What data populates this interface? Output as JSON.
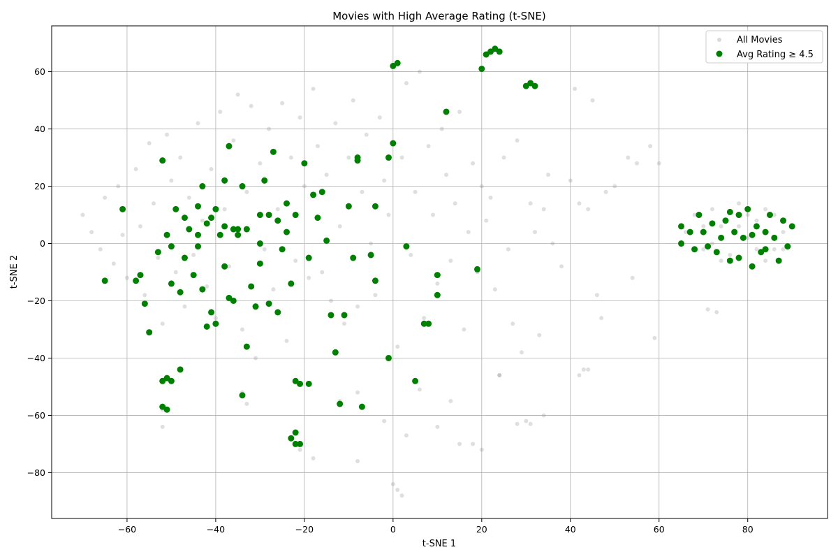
{
  "chart_data": {
    "type": "scatter",
    "title": "Movies with High Average Rating (t-SNE)",
    "xlabel": "t-SNE 1",
    "ylabel": "t-SNE 2",
    "xlim": [
      -77,
      98
    ],
    "ylim": [
      -96,
      76
    ],
    "x_ticks": [
      -60,
      -40,
      -20,
      0,
      20,
      40,
      60,
      80
    ],
    "y_ticks": [
      -80,
      -60,
      -40,
      -20,
      0,
      20,
      40,
      60
    ],
    "x_tick_labels": [
      "−60",
      "−40",
      "−20",
      "0",
      "20",
      "40",
      "60",
      "80"
    ],
    "y_tick_labels": [
      "−80",
      "−60",
      "−40",
      "−20",
      "0",
      "20",
      "40",
      "60"
    ],
    "grid": true,
    "legend_position": "top-right",
    "series": [
      {
        "name": "All Movies",
        "color": "#808080",
        "opacity": 0.25,
        "marker": "circle-small",
        "points": [
          [
            -70,
            10
          ],
          [
            -68,
            4
          ],
          [
            -66,
            -2
          ],
          [
            -65,
            16
          ],
          [
            -63,
            -7
          ],
          [
            -62,
            20
          ],
          [
            -61,
            3
          ],
          [
            -60,
            -12
          ],
          [
            -58,
            26
          ],
          [
            -57,
            6
          ],
          [
            -56,
            -18
          ],
          [
            -55,
            35
          ],
          [
            -54,
            14
          ],
          [
            -53,
            -5
          ],
          [
            -52,
            -28
          ],
          [
            -51,
            38
          ],
          [
            -50,
            22
          ],
          [
            -49,
            -10
          ],
          [
            -48,
            30
          ],
          [
            -47,
            -22
          ],
          [
            -46,
            16
          ],
          [
            -45,
            -4
          ],
          [
            -44,
            42
          ],
          [
            -43,
            8
          ],
          [
            -42,
            -15
          ],
          [
            -41,
            26
          ],
          [
            -40,
            -26
          ],
          [
            -39,
            46
          ],
          [
            -38,
            12
          ],
          [
            -37,
            -8
          ],
          [
            -36,
            36
          ],
          [
            -35,
            52
          ],
          [
            -34,
            -30
          ],
          [
            -33,
            18
          ],
          [
            -32,
            48
          ],
          [
            -31,
            -40
          ],
          [
            -30,
            28
          ],
          [
            -29,
            -2
          ],
          [
            -28,
            40
          ],
          [
            -27,
            -16
          ],
          [
            -26,
            12
          ],
          [
            -25,
            49
          ],
          [
            -24,
            -34
          ],
          [
            -23,
            30
          ],
          [
            -22,
            -6
          ],
          [
            -21,
            44
          ],
          [
            -20,
            20
          ],
          [
            -19,
            -12
          ],
          [
            -18,
            54
          ],
          [
            -17,
            34
          ],
          [
            -16,
            -10
          ],
          [
            -15,
            24
          ],
          [
            -14,
            -20
          ],
          [
            -13,
            42
          ],
          [
            -12,
            6
          ],
          [
            -11,
            -28
          ],
          [
            -10,
            30
          ],
          [
            -9,
            50
          ],
          [
            -8,
            -22
          ],
          [
            -7,
            18
          ],
          [
            -6,
            38
          ],
          [
            -5,
            0
          ],
          [
            -4,
            -18
          ],
          [
            -3,
            44
          ],
          [
            -2,
            22
          ],
          [
            -1,
            10
          ],
          [
            0,
            62
          ],
          [
            1,
            -36
          ],
          [
            2,
            30
          ],
          [
            3,
            56
          ],
          [
            4,
            -4
          ],
          [
            5,
            18
          ],
          [
            6,
            60
          ],
          [
            7,
            -26
          ],
          [
            8,
            34
          ],
          [
            9,
            10
          ],
          [
            10,
            -14
          ],
          [
            11,
            40
          ],
          [
            12,
            24
          ],
          [
            13,
            -6
          ],
          [
            14,
            14
          ],
          [
            15,
            46
          ],
          [
            16,
            -30
          ],
          [
            17,
            4
          ],
          [
            18,
            28
          ],
          [
            19,
            -10
          ],
          [
            20,
            20
          ],
          [
            21,
            8
          ],
          [
            22,
            16
          ],
          [
            23,
            -16
          ],
          [
            24,
            -46
          ],
          [
            25,
            30
          ],
          [
            26,
            -2
          ],
          [
            27,
            -28
          ],
          [
            28,
            36
          ],
          [
            29,
            -38
          ],
          [
            30,
            -62
          ],
          [
            31,
            14
          ],
          [
            32,
            4
          ],
          [
            33,
            -32
          ],
          [
            34,
            12
          ],
          [
            35,
            24
          ],
          [
            36,
            0
          ],
          [
            38,
            -8
          ],
          [
            40,
            22
          ],
          [
            41,
            54
          ],
          [
            42,
            14
          ],
          [
            43,
            -44
          ],
          [
            44,
            12
          ],
          [
            45,
            50
          ],
          [
            46,
            -18
          ],
          [
            47,
            -26
          ],
          [
            48,
            18
          ],
          [
            50,
            20
          ],
          [
            53,
            30
          ],
          [
            54,
            -12
          ],
          [
            55,
            28
          ],
          [
            58,
            34
          ],
          [
            59,
            -33
          ],
          [
            60,
            28
          ],
          [
            -52,
            -58
          ],
          [
            -52,
            -64
          ],
          [
            -34,
            -52
          ],
          [
            -33,
            -56
          ],
          [
            -22,
            -66
          ],
          [
            -21,
            -72
          ],
          [
            -18,
            -75
          ],
          [
            -12,
            -55
          ],
          [
            -8,
            -52
          ],
          [
            -8,
            -76
          ],
          [
            -2,
            -62
          ],
          [
            0,
            -84
          ],
          [
            1,
            -86
          ],
          [
            2,
            -88
          ],
          [
            3,
            -67
          ],
          [
            6,
            -51
          ],
          [
            10,
            -64
          ],
          [
            13,
            -55
          ],
          [
            15,
            -70
          ],
          [
            18,
            -70
          ],
          [
            20,
            -72
          ],
          [
            24,
            -46
          ],
          [
            28,
            -63
          ],
          [
            31,
            -63
          ],
          [
            34,
            -60
          ],
          [
            44,
            -44
          ],
          [
            42,
            -46
          ],
          [
            71,
            -23
          ],
          [
            73,
            -24
          ],
          [
            88,
            -2
          ],
          [
            66,
            4
          ],
          [
            68,
            10
          ],
          [
            70,
            -2
          ],
          [
            72,
            12
          ],
          [
            74,
            6
          ],
          [
            76,
            -4
          ],
          [
            78,
            14
          ],
          [
            80,
            2
          ],
          [
            82,
            8
          ],
          [
            84,
            -6
          ],
          [
            86,
            10
          ],
          [
            88,
            4
          ],
          [
            70,
            6
          ],
          [
            74,
            -6
          ],
          [
            78,
            6
          ],
          [
            82,
            -2
          ],
          [
            86,
            -2
          ],
          [
            72,
            0
          ],
          [
            80,
            10
          ],
          [
            84,
            12
          ]
        ]
      },
      {
        "name": "Avg Rating ≥ 4.5",
        "color": "#008000",
        "opacity": 1,
        "marker": "circle",
        "points": [
          [
            -65,
            -13
          ],
          [
            -61,
            12
          ],
          [
            -58,
            -13
          ],
          [
            -57,
            -11
          ],
          [
            -56,
            -21
          ],
          [
            -55,
            -31
          ],
          [
            -53,
            -3
          ],
          [
            -52,
            29
          ],
          [
            -51,
            3
          ],
          [
            -50,
            -1
          ],
          [
            -50,
            -14
          ],
          [
            -49,
            12
          ],
          [
            -48,
            -17
          ],
          [
            -47,
            9
          ],
          [
            -47,
            -5
          ],
          [
            -46,
            5
          ],
          [
            -45,
            -11
          ],
          [
            -44,
            13
          ],
          [
            -44,
            3
          ],
          [
            -43,
            -16
          ],
          [
            -43,
            20
          ],
          [
            -42,
            7
          ],
          [
            -42,
            -29
          ],
          [
            -41,
            -24
          ],
          [
            -40,
            -28
          ],
          [
            -40,
            12
          ],
          [
            -39,
            3
          ],
          [
            -38,
            -8
          ],
          [
            -38,
            22
          ],
          [
            -37,
            34
          ],
          [
            -37,
            -19
          ],
          [
            -36,
            -20
          ],
          [
            -35,
            5
          ],
          [
            -34,
            20
          ],
          [
            -33,
            -36
          ],
          [
            -32,
            -15
          ],
          [
            -31,
            -22
          ],
          [
            -30,
            10
          ],
          [
            -30,
            -7
          ],
          [
            -29,
            22
          ],
          [
            -28,
            -21
          ],
          [
            -28,
            10
          ],
          [
            -27,
            32
          ],
          [
            -26,
            -24
          ],
          [
            -25,
            -2
          ],
          [
            -24,
            14
          ],
          [
            -24,
            4
          ],
          [
            -23,
            -14
          ],
          [
            -22,
            -48
          ],
          [
            -22,
            10
          ],
          [
            -21,
            -49
          ],
          [
            -20,
            28
          ],
          [
            -19,
            -5
          ],
          [
            -19,
            -49
          ],
          [
            -18,
            17
          ],
          [
            -17,
            9
          ],
          [
            -16,
            18
          ],
          [
            -15,
            1
          ],
          [
            -14,
            -25
          ],
          [
            -13,
            -38
          ],
          [
            -12,
            -56
          ],
          [
            -11,
            -25
          ],
          [
            -10,
            13
          ],
          [
            -9,
            -5
          ],
          [
            -8,
            30
          ],
          [
            -8,
            29
          ],
          [
            -7,
            -57
          ],
          [
            -5,
            -4
          ],
          [
            -4,
            -13
          ],
          [
            -4,
            13
          ],
          [
            -1,
            30
          ],
          [
            -1,
            -40
          ],
          [
            0,
            35
          ],
          [
            0,
            62
          ],
          [
            1,
            63
          ],
          [
            3,
            -1
          ],
          [
            5,
            -48
          ],
          [
            7,
            -28
          ],
          [
            8,
            -28
          ],
          [
            10,
            -11
          ],
          [
            10,
            -18
          ],
          [
            12,
            46
          ],
          [
            19,
            -9
          ],
          [
            20,
            61
          ],
          [
            21,
            66
          ],
          [
            22,
            67
          ],
          [
            23,
            68
          ],
          [
            24,
            67
          ],
          [
            30,
            55
          ],
          [
            31,
            56
          ],
          [
            32,
            55
          ],
          [
            -51,
            -47
          ],
          [
            -50,
            -48
          ],
          [
            -52,
            -48
          ],
          [
            -52,
            -57
          ],
          [
            -51,
            -58
          ],
          [
            -48,
            -44
          ],
          [
            -34,
            -53
          ],
          [
            -23,
            -68
          ],
          [
            -22,
            -70
          ],
          [
            -21,
            -70
          ],
          [
            -22,
            -66
          ],
          [
            -35,
            3
          ],
          [
            -36,
            5
          ],
          [
            -33,
            5
          ],
          [
            -30,
            0
          ],
          [
            -26,
            8
          ],
          [
            -38,
            6
          ],
          [
            -41,
            9
          ],
          [
            -44,
            -1
          ],
          [
            65,
            6
          ],
          [
            65,
            0
          ],
          [
            67,
            4
          ],
          [
            68,
            -2
          ],
          [
            69,
            10
          ],
          [
            70,
            4
          ],
          [
            71,
            -1
          ],
          [
            72,
            7
          ],
          [
            73,
            -3
          ],
          [
            74,
            2
          ],
          [
            75,
            8
          ],
          [
            76,
            -6
          ],
          [
            77,
            4
          ],
          [
            78,
            10
          ],
          [
            79,
            2
          ],
          [
            80,
            12
          ],
          [
            81,
            -8
          ],
          [
            82,
            6
          ],
          [
            83,
            -3
          ],
          [
            84,
            4
          ],
          [
            85,
            10
          ],
          [
            86,
            2
          ],
          [
            87,
            -6
          ],
          [
            88,
            8
          ],
          [
            89,
            -1
          ],
          [
            90,
            6
          ],
          [
            76,
            11
          ],
          [
            78,
            -5
          ],
          [
            81,
            3
          ],
          [
            84,
            -2
          ]
        ]
      }
    ]
  }
}
